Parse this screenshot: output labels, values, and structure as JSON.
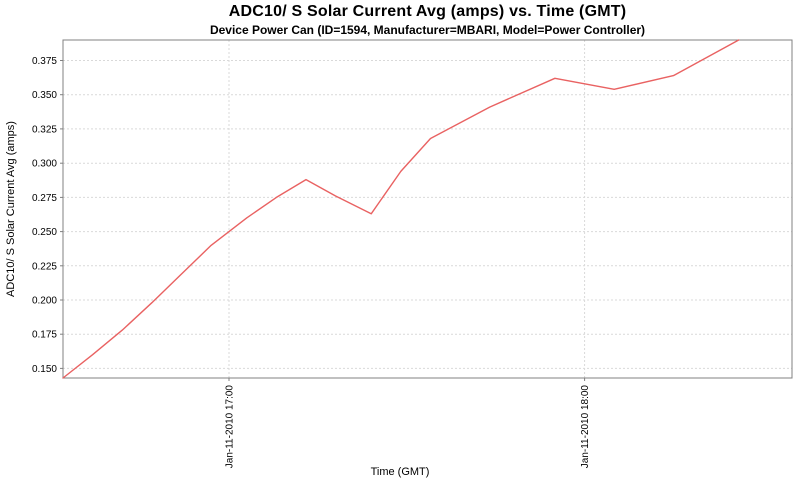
{
  "header": {
    "title": "ADC10/ S Solar Current Avg (amps) vs. Time (GMT)",
    "subtitle": "Device Power Can (ID=1594, Manufacturer=MBARI, Model=Power Controller)"
  },
  "style": {
    "background": "#ffffff",
    "grid_color": "#d9d9d9",
    "border_color": "#808080",
    "tick_color": "#808080",
    "text_color": "#000000",
    "series_color": "#e96262"
  },
  "chart_data": {
    "type": "line",
    "title": "ADC10/ S Solar Current Avg (amps) vs. Time (GMT)",
    "subtitle": "Device Power Can (ID=1594, Manufacturer=MBARI, Model=Power Controller)",
    "xlabel": "Time (GMT)",
    "ylabel": "ADC10/ S Solar Current Avg (amps)",
    "date": "Jan-11-2010",
    "xlim": [
      "16:32",
      "18:35"
    ],
    "ylim": [
      0.143,
      0.39
    ],
    "grid": "dashed",
    "legend": "none",
    "x_ticks": [
      {
        "label": "Jan-11-2010 17:00",
        "time": "17:00"
      },
      {
        "label": "Jan-11-2010 18:00",
        "time": "18:00"
      }
    ],
    "y_ticks": [
      {
        "label": "0.150",
        "value": 0.15
      },
      {
        "label": "0.175",
        "value": 0.175
      },
      {
        "label": "0.200",
        "value": 0.2
      },
      {
        "label": "0.225",
        "value": 0.225
      },
      {
        "label": "0.250",
        "value": 0.25
      },
      {
        "label": "0.275",
        "value": 0.275
      },
      {
        "label": "0.300",
        "value": 0.3
      },
      {
        "label": "0.325",
        "value": 0.325
      },
      {
        "label": "0.350",
        "value": 0.35
      },
      {
        "label": "0.375",
        "value": 0.375
      }
    ],
    "series": [
      {
        "name": "ADC10/ S Solar Current Avg (amps)",
        "color": "#e96262",
        "points": [
          [
            "16:32",
            0.143
          ],
          [
            "16:37",
            0.16
          ],
          [
            "16:42",
            0.178
          ],
          [
            "16:47",
            0.198
          ],
          [
            "16:52",
            0.219
          ],
          [
            "16:57",
            0.24
          ],
          [
            "17:03",
            0.26
          ],
          [
            "17:08",
            0.275
          ],
          [
            "17:13",
            0.288
          ],
          [
            "17:18",
            0.276
          ],
          [
            "17:24",
            0.263
          ],
          [
            "17:29",
            0.294
          ],
          [
            "17:34",
            0.318
          ],
          [
            "17:44",
            0.341
          ],
          [
            "17:55",
            0.362
          ],
          [
            "18:05",
            0.354
          ],
          [
            "18:15",
            0.364
          ],
          [
            "18:26",
            0.39
          ]
        ]
      }
    ]
  }
}
